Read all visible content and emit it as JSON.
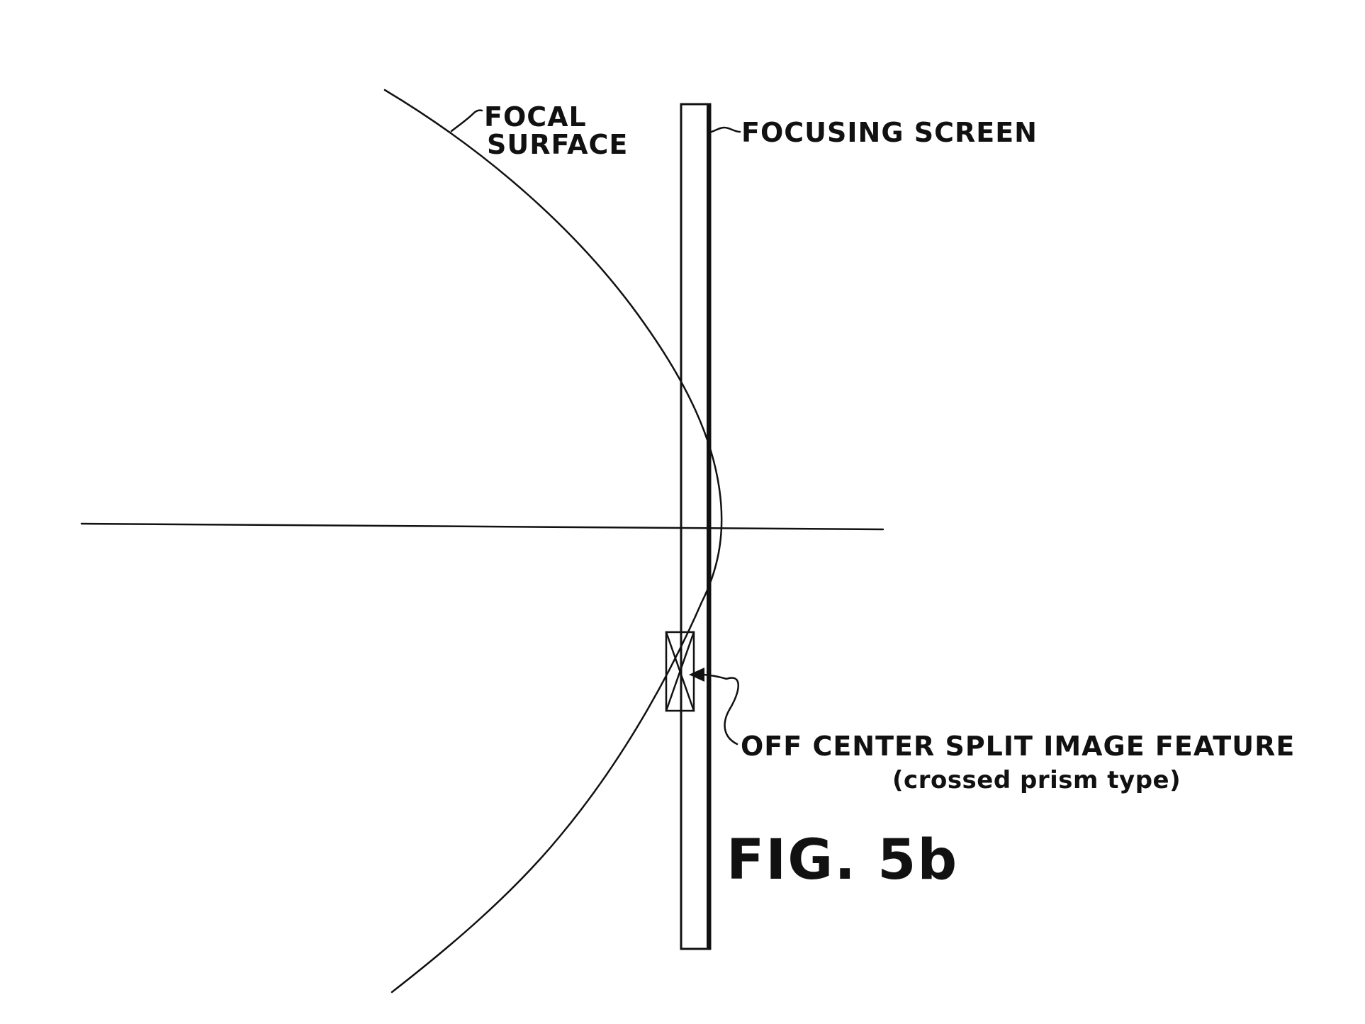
{
  "labels": {
    "focal_surface_line1": "FOCAL",
    "focal_surface_line2": "SURFACE",
    "focusing_screen": "FOCUSING SCREEN",
    "split_image_line1": "OFF CENTER SPLIT IMAGE FEATURE",
    "split_image_line2": "(crossed prism type)",
    "figure_number": "FIG. 5b"
  },
  "colors": {
    "ink": "#111111",
    "paper": "#ffffff"
  }
}
